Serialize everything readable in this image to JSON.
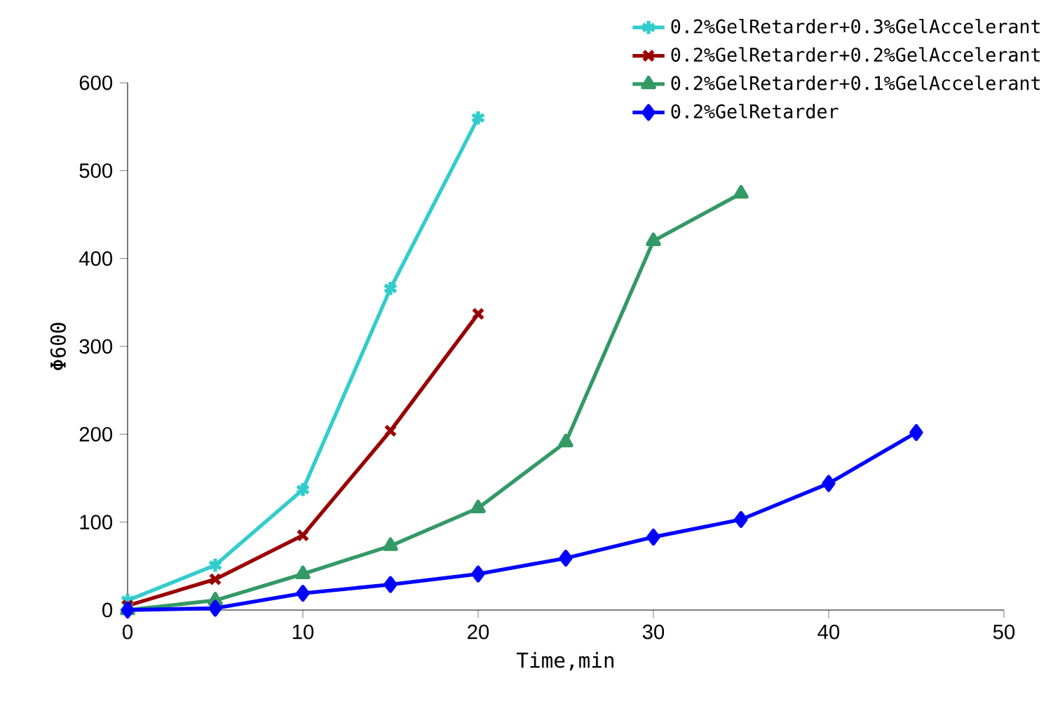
{
  "chart_data": {
    "type": "line",
    "xlabel": "Time,min",
    "ylabel": "Φ600",
    "xlim": [
      0,
      50
    ],
    "ylim": [
      0,
      600
    ],
    "xticks": [
      0,
      10,
      20,
      30,
      40,
      50
    ],
    "yticks": [
      0,
      100,
      200,
      300,
      400,
      500,
      600
    ],
    "legend": "top right",
    "line_style": "solid",
    "series": [
      {
        "name": "0.2%GelRetarder+0.3%GelAccelerant",
        "color": "#33cccc",
        "marker": "cross",
        "x": [
          0,
          5,
          10,
          15,
          20
        ],
        "values": [
          11,
          51,
          137,
          366,
          560
        ]
      },
      {
        "name": "0.2%GelRetarder+0.2%GelAccelerant",
        "color": "#990000",
        "marker": "cross",
        "x": [
          0,
          5,
          10,
          15,
          20
        ],
        "values": [
          5,
          35,
          85,
          204,
          337
        ]
      },
      {
        "name": "0.2%GelRetarder+0.1%GelAccelerant",
        "color": "#339966",
        "marker": "triangle",
        "x": [
          0,
          5,
          10,
          15,
          20,
          25,
          30,
          35
        ],
        "values": [
          0,
          11,
          41,
          73,
          116,
          191,
          420,
          474
        ]
      },
      {
        "name": "0.2%GelRetarder",
        "color": "#0000ff",
        "marker": "diamond",
        "x": [
          0,
          5,
          10,
          15,
          20,
          25,
          30,
          35,
          40,
          45
        ],
        "values": [
          0,
          2,
          19,
          29,
          41,
          59,
          83,
          103,
          144,
          202
        ]
      }
    ]
  }
}
